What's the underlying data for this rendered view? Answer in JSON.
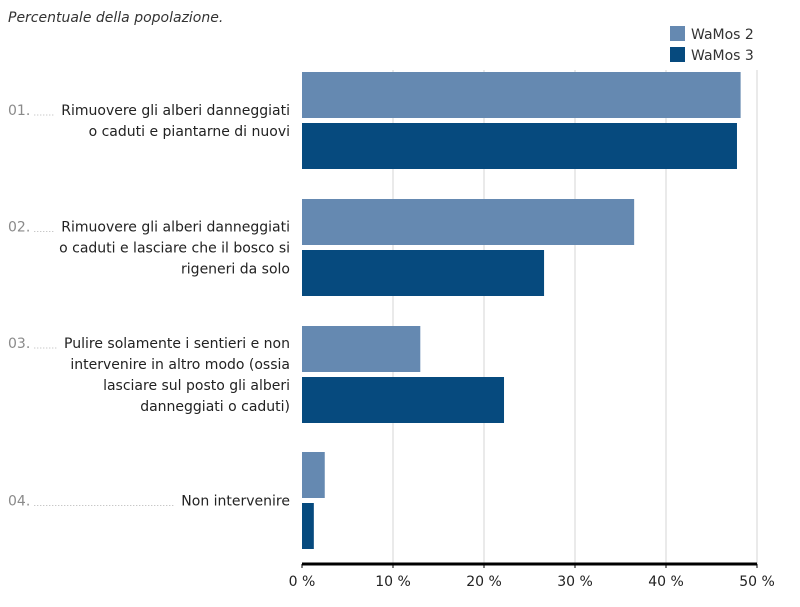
{
  "chart_data": {
    "type": "bar",
    "orientation": "horizontal",
    "subtitle": "Percentuale della popolazione.",
    "categories": [
      {
        "number": "01.",
        "lines": [
          "Rimuovere gli alberi danneggiati",
          "o caduti e piantarne di nuovi"
        ]
      },
      {
        "number": "02.",
        "lines": [
          "Rimuovere gli alberi danneggiati",
          "o caduti e lasciare che il bosco si",
          "rigeneri da solo"
        ]
      },
      {
        "number": "03.",
        "lines": [
          "Pulire solamente i sentieri e non",
          "intervenire in altro modo (ossia",
          "lasciare sul posto gli alberi",
          "danneggiati o caduti)"
        ]
      },
      {
        "number": "04.",
        "lines": [
          "Non intervenire"
        ]
      }
    ],
    "series": [
      {
        "name": "WaMos 2",
        "color": "#6589b1",
        "values": [
          48.2,
          36.5,
          13.0,
          2.5
        ]
      },
      {
        "name": "WaMos 3",
        "color": "#064a7e",
        "values": [
          47.8,
          26.6,
          22.2,
          1.3
        ]
      }
    ],
    "xlim": [
      0,
      50
    ],
    "xticks": [
      0,
      10,
      20,
      30,
      40,
      50
    ],
    "xtick_labels": [
      "0 %",
      "10 %",
      "20 %",
      "30 %",
      "40 %",
      "50 %"
    ],
    "legend_position": "top-right",
    "grid": true
  }
}
